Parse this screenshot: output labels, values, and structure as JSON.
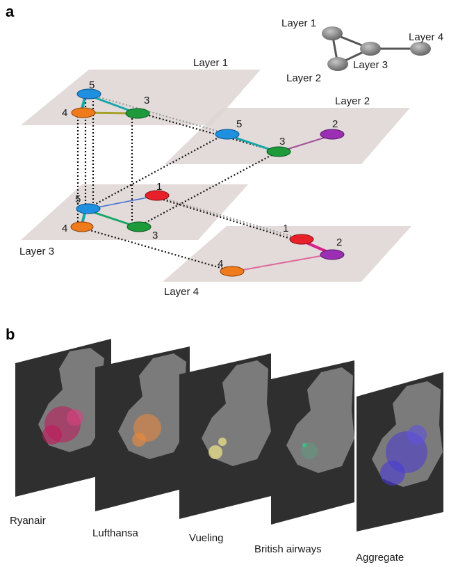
{
  "panel_a": {
    "letter": "a",
    "layers": [
      {
        "id": "L1",
        "label": "Layer 1"
      },
      {
        "id": "L2",
        "label": "Layer 2"
      },
      {
        "id": "L3",
        "label": "Layer 3"
      },
      {
        "id": "L4",
        "label": "Layer 4"
      }
    ],
    "node_colors": {
      "1": "#e8202a",
      "2": "#9a2fb3",
      "3": "#1e9a3a",
      "4": "#f07b1c",
      "5": "#1f8fe0"
    },
    "nodes": [
      {
        "layer": "L1",
        "n": "5"
      },
      {
        "layer": "L1",
        "n": "4"
      },
      {
        "layer": "L1",
        "n": "3"
      },
      {
        "layer": "L2",
        "n": "5"
      },
      {
        "layer": "L2",
        "n": "3"
      },
      {
        "layer": "L2",
        "n": "2"
      },
      {
        "layer": "L3",
        "n": "5"
      },
      {
        "layer": "L3",
        "n": "1"
      },
      {
        "layer": "L3",
        "n": "4"
      },
      {
        "layer": "L3",
        "n": "3"
      },
      {
        "layer": "L4",
        "n": "1"
      },
      {
        "layer": "L4",
        "n": "2"
      },
      {
        "layer": "L4",
        "n": "4"
      }
    ],
    "edges": [
      {
        "layer": "L1",
        "from": "5",
        "to": "4"
      },
      {
        "layer": "L1",
        "from": "5",
        "to": "3"
      },
      {
        "layer": "L1",
        "from": "4",
        "to": "3"
      },
      {
        "layer": "L2",
        "from": "5",
        "to": "3"
      },
      {
        "layer": "L2",
        "from": "3",
        "to": "2"
      },
      {
        "layer": "L3",
        "from": "5",
        "to": "4"
      },
      {
        "layer": "L3",
        "from": "5",
        "to": "1"
      },
      {
        "layer": "L3",
        "from": "5",
        "to": "3"
      },
      {
        "layer": "L4",
        "from": "1",
        "to": "2"
      },
      {
        "layer": "L4",
        "from": "2",
        "to": "4"
      }
    ],
    "interlayer_links": [
      {
        "a": "L1.5",
        "b": "L2.5"
      },
      {
        "a": "L1.3",
        "b": "L2.3"
      },
      {
        "a": "L1.4",
        "b": "L3.4"
      },
      {
        "a": "L1.5",
        "b": "L3.5"
      },
      {
        "a": "L1.3",
        "b": "L3.3"
      },
      {
        "a": "L2.5",
        "b": "L3.5"
      },
      {
        "a": "L2.3",
        "b": "L3.3"
      },
      {
        "a": "L3.1",
        "b": "L4.1"
      },
      {
        "a": "L3.4",
        "b": "L4.4"
      }
    ],
    "inset": {
      "nodes": [
        "Layer 1",
        "Layer 2",
        "Layer 3",
        "Layer 4"
      ],
      "edges": [
        [
          "Layer 1",
          "Layer 2"
        ],
        [
          "Layer 1",
          "Layer 3"
        ],
        [
          "Layer 2",
          "Layer 3"
        ],
        [
          "Layer 3",
          "Layer 4"
        ]
      ]
    }
  },
  "panel_b": {
    "letter": "b",
    "maps": [
      {
        "label": "Ryanair",
        "color": "#c2185b"
      },
      {
        "label": "Lufthansa",
        "color": "#f08a3a"
      },
      {
        "label": "Vueling",
        "color": "#f3e88c"
      },
      {
        "label": "British airways",
        "color": "#3fbf88"
      },
      {
        "label": "Aggregate",
        "color": "#4a3bd6"
      }
    ]
  }
}
